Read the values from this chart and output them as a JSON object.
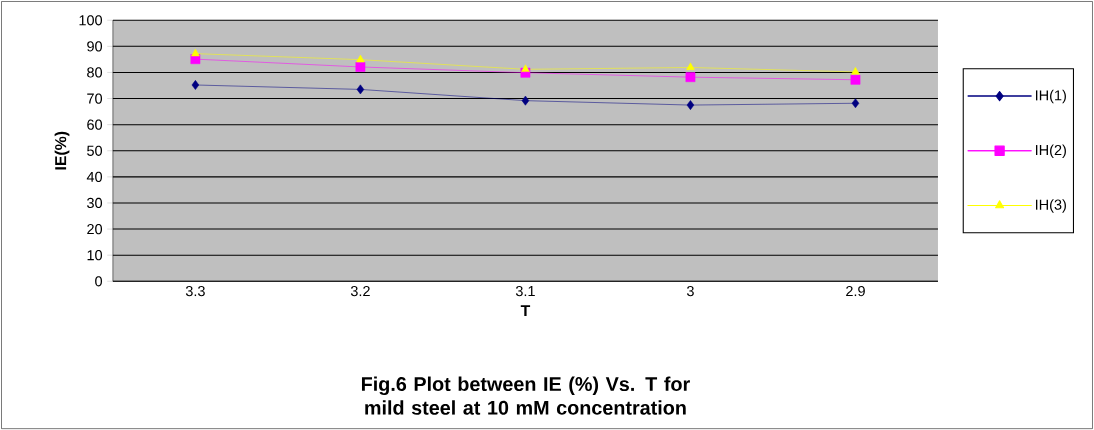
{
  "chart_data": {
    "type": "line",
    "title": "Fig.6 Plot between IE (%) Vs. T for mild steel at 10 mM concentration",
    "xlabel": "T",
    "ylabel": "IE(%)",
    "categories": [
      "3.3",
      "3.2",
      "3.1",
      "3",
      "2.9"
    ],
    "series": [
      {
        "name": "IH(1)",
        "color": "#000080",
        "marker": "diamond",
        "values": [
          75.2,
          73.5,
          69.2,
          67.5,
          68.2
        ]
      },
      {
        "name": "IH(2)",
        "color": "#ff00ff",
        "marker": "square",
        "values": [
          85.1,
          82.1,
          79.9,
          78.2,
          77.2
        ]
      },
      {
        "name": "IH(3)",
        "color": "#ffff00",
        "marker": "triangle",
        "values": [
          87.2,
          84.9,
          81.2,
          81.9,
          80.2
        ]
      }
    ],
    "ylim": [
      0,
      100
    ],
    "yticks": [
      0,
      10,
      20,
      30,
      40,
      50,
      60,
      70,
      80,
      90,
      100
    ],
    "grid": "y",
    "legend": "right"
  }
}
